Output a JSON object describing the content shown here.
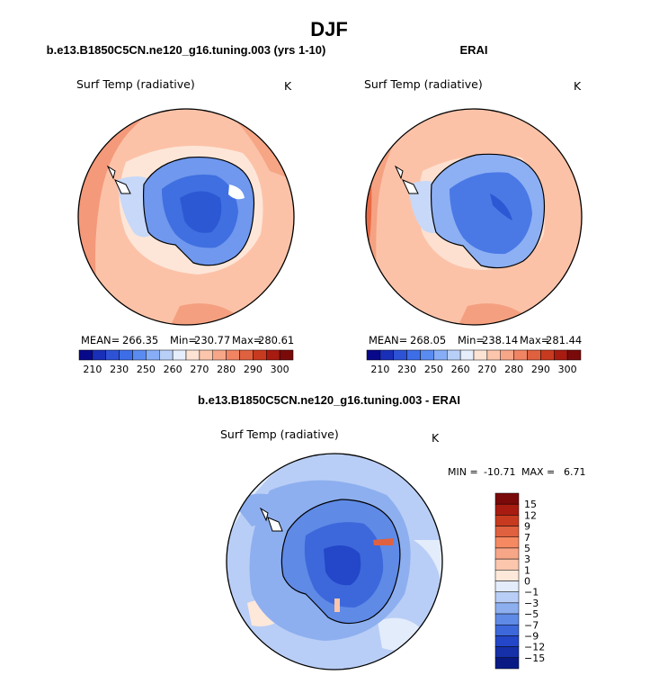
{
  "figure": {
    "title": "DJF"
  },
  "chart_data": [
    {
      "type": "heatmap",
      "title": "b.e13.B1850C5CN.ne120_g16.tuning.003 (yrs 1-10)",
      "subtitle": "Surf Temp (radiative)",
      "units": "K",
      "stats": {
        "mean_label": "MEAN=",
        "mean": "266.35",
        "min_label": "Min=",
        "min": "230.77",
        "max_label": "Max=",
        "max": "280.61"
      },
      "colorbar": {
        "orientation": "horizontal",
        "tick_labels": [
          "210",
          "230",
          "250",
          "260",
          "270",
          "280",
          "290",
          "300"
        ],
        "colors": [
          "#08088a",
          "#1a2fb8",
          "#2d52d6",
          "#3d6ee8",
          "#5a8bf0",
          "#86adf5",
          "#b8cff8",
          "#e6eefc",
          "#fde3d4",
          "#fcc6ad",
          "#f8a688",
          "#f08463",
          "#e0613f",
          "#c83a1f",
          "#a81b10",
          "#7a0a0a"
        ]
      }
    },
    {
      "type": "heatmap",
      "title": "ERAI",
      "subtitle": "Surf Temp (radiative)",
      "units": "K",
      "stats": {
        "mean_label": "MEAN=",
        "mean": "268.05",
        "min_label": "Min=",
        "min": "238.14",
        "max_label": "Max=",
        "max": "281.44"
      },
      "colorbar": {
        "orientation": "horizontal",
        "tick_labels": [
          "210",
          "230",
          "250",
          "260",
          "270",
          "280",
          "290",
          "300"
        ],
        "colors": [
          "#08088a",
          "#1a2fb8",
          "#2d52d6",
          "#3d6ee8",
          "#5a8bf0",
          "#86adf5",
          "#b8cff8",
          "#e6eefc",
          "#fde3d4",
          "#fcc6ad",
          "#f8a688",
          "#f08463",
          "#e0613f",
          "#c83a1f",
          "#a81b10",
          "#7a0a0a"
        ]
      }
    },
    {
      "type": "heatmap",
      "title": "b.e13.B1850C5CN.ne120_g16.tuning.003 - ERAI",
      "subtitle": "Surf Temp (radiative)",
      "units": "K",
      "stats": {
        "min_label": "MIN =",
        "min": "-10.71",
        "max_label": "MAX =",
        "max": "6.71"
      },
      "colorbar": {
        "orientation": "vertical",
        "tick_labels": [
          "15",
          "12",
          "9",
          "7",
          "5",
          "3",
          "1",
          "0",
          "−1",
          "−3",
          "−5",
          "−7",
          "−9",
          "−12",
          "−15"
        ],
        "colors": [
          "#7a0a0a",
          "#a81b10",
          "#c83a1f",
          "#e0613f",
          "#f58a62",
          "#f8a688",
          "#fcc6ad",
          "#fde8da",
          "#e3ecfb",
          "#b9cef6",
          "#8dafef",
          "#5f8ae6",
          "#3d68db",
          "#2347c8",
          "#1530a8",
          "#0a1a85"
        ]
      }
    }
  ]
}
